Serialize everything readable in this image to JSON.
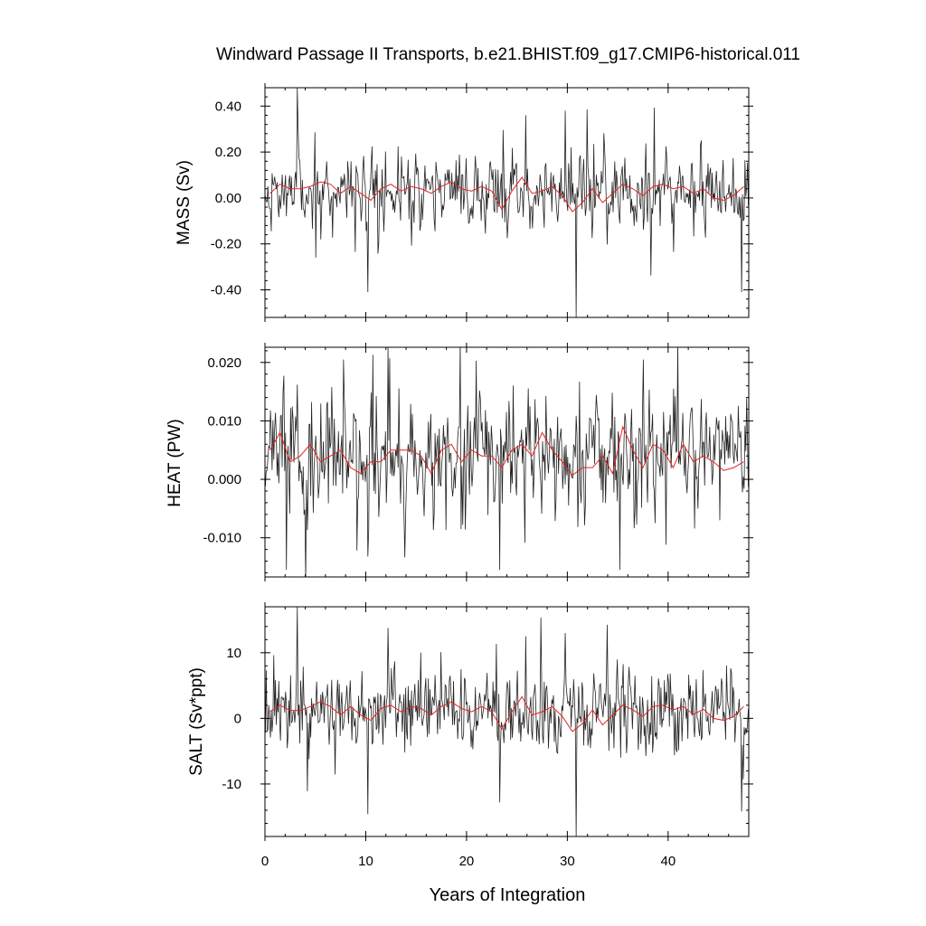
{
  "chart_data": [
    {
      "type": "line",
      "title": "Windward Passage II Transports, b.e21.BHIST.f09_g17.CMIP6-historical.011",
      "xlabel": "Years of Integration",
      "ylabel": "MASS (Sv)",
      "xlim": [
        0,
        48
      ],
      "ylim": [
        -0.52,
        0.48
      ],
      "yticks": [
        -0.4,
        -0.2,
        0.0,
        0.2,
        0.4
      ],
      "ytick_labels": [
        "-0.40",
        "-0.20",
        "0.00",
        "0.20",
        "0.40"
      ],
      "xticks": [
        0,
        10,
        20,
        30,
        40
      ],
      "xtick_labels": [
        "0",
        "10",
        "20",
        "30",
        "40"
      ],
      "series": [
        {
          "color": "#222222",
          "x_start": 0.0417,
          "x_step": 0.0833333,
          "count": 576,
          "mean": 0.03,
          "std": 0.1,
          "seed": 11,
          "extremes": [
            [
              3.2,
              0.48
            ],
            [
              10.2,
              -0.41
            ],
            [
              30.9,
              -0.52
            ],
            [
              47.3,
              -0.41
            ],
            [
              29.8,
              0.38
            ],
            [
              25.9,
              0.36
            ]
          ]
        },
        {
          "color": "#e32222",
          "x": [
            0.5,
            1.5,
            2.5,
            3.5,
            4.5,
            5.5,
            6.5,
            7.5,
            8.5,
            9.5,
            10.5,
            11.5,
            12.5,
            13.5,
            14.5,
            15.5,
            16.5,
            17.5,
            18.5,
            19.5,
            20.5,
            21.5,
            22.5,
            23.5,
            24.5,
            25.5,
            26.5,
            27.5,
            28.5,
            29.5,
            30.5,
            31.5,
            32.5,
            33.5,
            34.5,
            35.5,
            36.5,
            37.5,
            38.5,
            39.5,
            40.5,
            41.5,
            42.5,
            43.5,
            44.5,
            45.5,
            46.5,
            47.5
          ],
          "values": [
            0.02,
            0.06,
            0.04,
            0.04,
            0.05,
            0.07,
            0.06,
            0.02,
            0.05,
            0.02,
            -0.01,
            0.04,
            0.06,
            0.03,
            0.05,
            0.04,
            0.02,
            0.05,
            0.07,
            0.04,
            0.03,
            0.05,
            0.03,
            -0.05,
            0.03,
            0.09,
            0.02,
            0.03,
            0.05,
            0.01,
            -0.06,
            -0.02,
            0.04,
            -0.02,
            0.02,
            0.06,
            0.04,
            0.01,
            0.05,
            0.06,
            0.04,
            0.05,
            0.02,
            0.04,
            0.0,
            -0.01,
            0.01,
            0.05
          ]
        }
      ]
    },
    {
      "type": "line",
      "xlabel": "Years of Integration",
      "ylabel": "HEAT (PW)",
      "xlim": [
        0,
        48
      ],
      "ylim": [
        -0.0167,
        0.0226
      ],
      "yticks": [
        -0.01,
        0.0,
        0.01,
        0.02
      ],
      "ytick_labels": [
        "-0.010",
        "0.000",
        "0.010",
        "0.020"
      ],
      "xticks": [
        0,
        10,
        20,
        30,
        40
      ],
      "xtick_labels": [
        "0",
        "10",
        "20",
        "30",
        "40"
      ],
      "series": [
        {
          "color": "#222222",
          "x_start": 0.0417,
          "x_step": 0.0833333,
          "count": 576,
          "mean": 0.004,
          "std": 0.0058,
          "seed": 23,
          "extremes": [
            [
              12.2,
              0.0226
            ],
            [
              2.1,
              -0.0155
            ],
            [
              23.3,
              -0.0155
            ],
            [
              35.2,
              -0.0155
            ],
            [
              10.2,
              -0.0132
            ],
            [
              7.8,
              0.0205
            ]
          ]
        },
        {
          "color": "#e32222",
          "x": [
            0.5,
            1.5,
            2.5,
            3.5,
            4.5,
            5.5,
            6.5,
            7.5,
            8.5,
            9.5,
            10.5,
            11.5,
            12.5,
            13.5,
            14.5,
            15.5,
            16.5,
            17.5,
            18.5,
            19.5,
            20.5,
            21.5,
            22.5,
            23.5,
            24.5,
            25.5,
            26.5,
            27.5,
            28.5,
            29.5,
            30.5,
            31.5,
            32.5,
            33.5,
            34.5,
            35.5,
            36.5,
            37.5,
            38.5,
            39.5,
            40.5,
            41.5,
            42.5,
            43.5,
            44.5,
            45.5,
            46.5,
            47.5
          ],
          "values": [
            0.005,
            0.008,
            0.003,
            0.004,
            0.006,
            0.003,
            0.004,
            0.005,
            0.002,
            0.001,
            0.003,
            0.003,
            0.005,
            0.005,
            0.005,
            0.004,
            0.001,
            0.005,
            0.006,
            0.003,
            0.005,
            0.004,
            0.004,
            0.002,
            0.005,
            0.006,
            0.004,
            0.008,
            0.005,
            0.003,
            0.0007,
            0.002,
            0.002,
            0.004,
            0.001,
            0.009,
            0.005,
            0.002,
            0.006,
            0.005,
            0.002,
            0.006,
            0.003,
            0.004,
            0.003,
            0.0015,
            0.002,
            0.003
          ]
        }
      ]
    },
    {
      "type": "line",
      "xlabel": "Years of Integration",
      "ylabel": "SALT (Sv*ppt)",
      "xlim": [
        0,
        48
      ],
      "ylim": [
        -18,
        17
      ],
      "yticks": [
        -10,
        0,
        10
      ],
      "ytick_labels": [
        "-10",
        "0",
        "10"
      ],
      "xticks": [
        0,
        10,
        20,
        30,
        40
      ],
      "xtick_labels": [
        "0",
        "10",
        "20",
        "30",
        "40"
      ],
      "series": [
        {
          "color": "#222222",
          "x_start": 0.0417,
          "x_step": 0.0833333,
          "count": 576,
          "mean": 1.0,
          "std": 3.6,
          "seed": 37,
          "extremes": [
            [
              3.2,
              17
            ],
            [
              10.2,
              -14.6
            ],
            [
              30.9,
              -18
            ],
            [
              47.3,
              -14.2
            ],
            [
              29.8,
              13.0
            ],
            [
              25.9,
              12.5
            ],
            [
              12.2,
              13.8
            ],
            [
              23.3,
              -12.8
            ]
          ]
        },
        {
          "color": "#e32222",
          "x": [
            0.5,
            1.5,
            2.5,
            3.5,
            4.5,
            5.5,
            6.5,
            7.5,
            8.5,
            9.5,
            10.5,
            11.5,
            12.5,
            13.5,
            14.5,
            15.5,
            16.5,
            17.5,
            18.5,
            19.5,
            20.5,
            21.5,
            22.5,
            23.5,
            24.5,
            25.5,
            26.5,
            27.5,
            28.5,
            29.5,
            30.5,
            31.5,
            32.5,
            33.5,
            34.5,
            35.5,
            36.5,
            37.5,
            38.5,
            39.5,
            40.5,
            41.5,
            42.5,
            43.5,
            44.5,
            45.5,
            46.5,
            47.5
          ],
          "values": [
            1.0,
            2.0,
            1.2,
            1.2,
            1.8,
            2.5,
            1.8,
            0.5,
            1.8,
            0.5,
            -0.3,
            1.5,
            2.0,
            1.0,
            1.8,
            1.5,
            0.5,
            1.8,
            2.5,
            1.5,
            1.0,
            1.8,
            1.0,
            -1.6,
            1.0,
            3.3,
            0.5,
            1.0,
            1.8,
            0.3,
            -2.0,
            -0.8,
            1.3,
            -1.0,
            0.5,
            2.0,
            1.3,
            0.3,
            1.8,
            2.0,
            1.3,
            1.8,
            0.6,
            1.4,
            0.0,
            -0.3,
            0.3,
            1.8
          ]
        }
      ]
    }
  ]
}
